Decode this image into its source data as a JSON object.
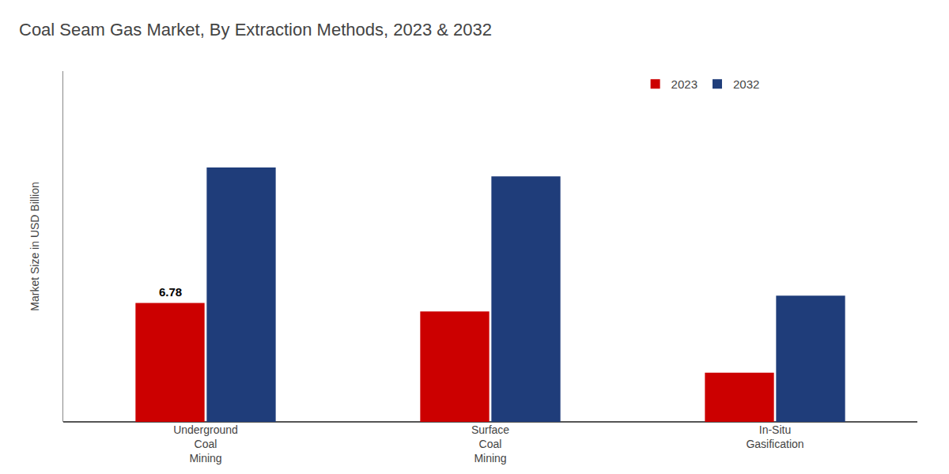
{
  "chart_data": {
    "type": "bar",
    "title": "Coal Seam Gas Market, By Extraction Methods, 2023 & 2032",
    "ylabel": "Market Size in USD Billion",
    "categories": [
      "Underground\nCoal\nMining",
      "Surface\nCoal\nMining",
      "In-Situ\nGasification"
    ],
    "series": [
      {
        "name": "2023",
        "color": "#cc0000",
        "values": [
          6.78,
          6.3,
          2.8
        ]
      },
      {
        "name": "2032",
        "color": "#1f3d7a",
        "values": [
          14.5,
          14.0,
          7.2
        ]
      }
    ],
    "annotations": [
      {
        "text": "6.78",
        "category": "Underground\nCoal\nMining",
        "series": "2023",
        "value": 6.78
      }
    ],
    "ylim": [
      0,
      20
    ],
    "yticks": [],
    "grid": false,
    "legend": "upper right",
    "tick_labels": "x"
  }
}
